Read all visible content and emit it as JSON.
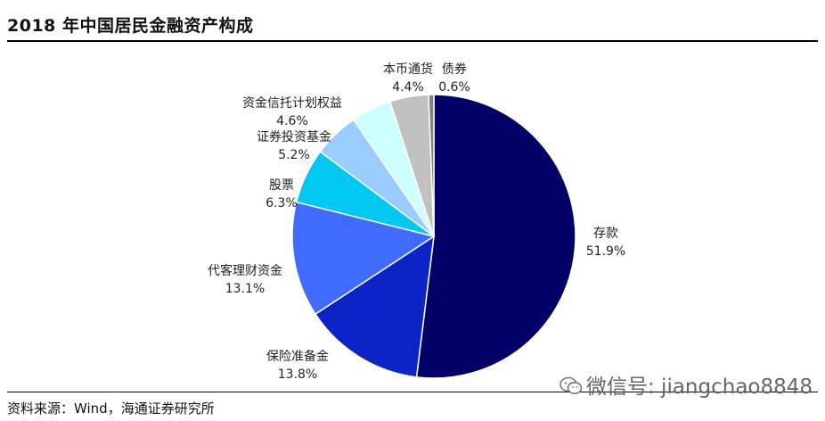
{
  "title": "2018 年中国居民金融资产构成",
  "source": "资料来源：Wind，海通证券研究所",
  "watermark": "微信号: jiangchao8848",
  "chart_data": {
    "type": "pie",
    "title": "2018 年中国居民金融资产构成",
    "slices": [
      {
        "name": "存款",
        "value": 51.9,
        "label": "51.9%",
        "color": "#000066"
      },
      {
        "name": "保险准备金",
        "value": 13.8,
        "label": "13.8%",
        "color": "#0A24C6"
      },
      {
        "name": "代客理财资金",
        "value": 13.1,
        "label": "13.1%",
        "color": "#3F6BFF"
      },
      {
        "name": "股票",
        "value": 6.3,
        "label": "6.3%",
        "color": "#00C8F0"
      },
      {
        "name": "证券投资基金",
        "value": 5.2,
        "label": "5.2%",
        "color": "#99CCFF"
      },
      {
        "name": "资金信托计划权益",
        "value": 4.6,
        "label": "4.6%",
        "color": "#CCFFFF"
      },
      {
        "name": "本币通货",
        "value": 4.4,
        "label": "4.4%",
        "color": "#C0C0C0"
      },
      {
        "name": "债券",
        "value": 0.6,
        "label": "0.6%",
        "color": "#808080"
      }
    ],
    "start_angle_deg": 0,
    "direction": "clockwise"
  }
}
